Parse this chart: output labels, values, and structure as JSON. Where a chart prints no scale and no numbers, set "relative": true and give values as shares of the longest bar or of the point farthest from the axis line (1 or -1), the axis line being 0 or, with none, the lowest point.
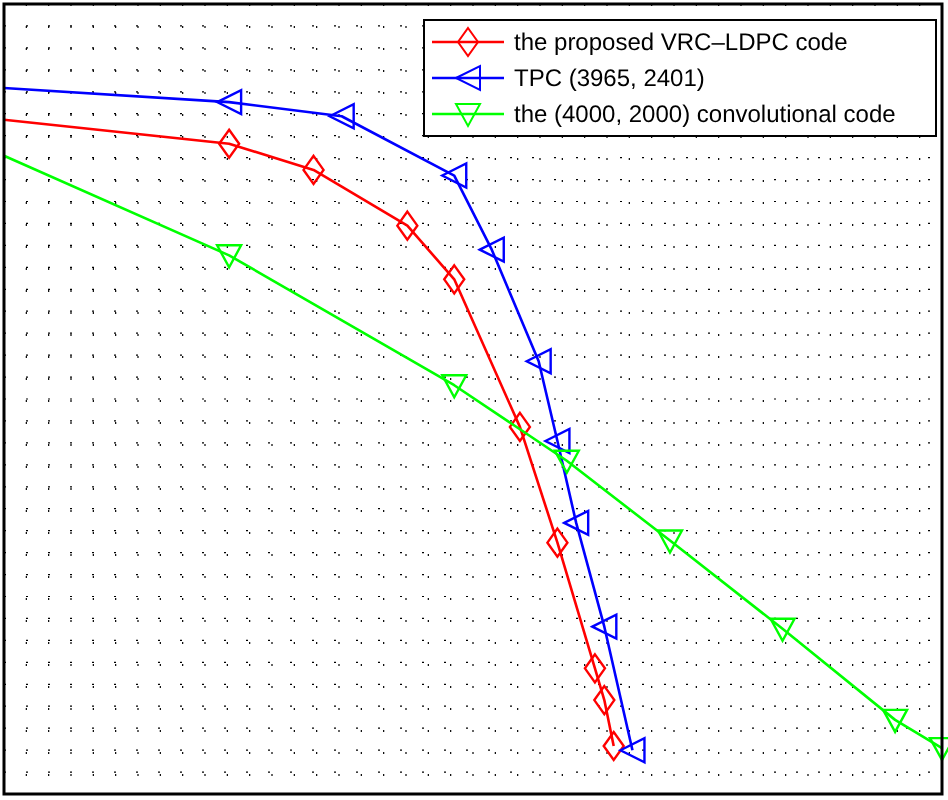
{
  "chart_data": {
    "type": "line",
    "relative": true,
    "grid": true,
    "legend": "top right",
    "line_style": "solid",
    "categories": [
      null,
      null,
      null,
      null,
      null,
      null,
      null,
      null,
      null,
      null,
      null,
      null,
      null,
      null,
      null,
      null,
      null,
      null,
      null,
      null,
      null,
      null,
      null,
      null,
      null,
      null,
      null,
      null,
      null,
      null,
      null,
      null,
      null,
      null,
      null,
      null,
      null,
      null,
      null,
      null,
      null,
      null,
      null,
      null,
      null,
      null,
      null,
      null,
      null,
      null,
      null,
      null,
      null,
      null,
      null,
      null,
      null,
      null,
      null,
      null,
      null,
      null,
      null,
      null,
      null,
      null,
      null,
      null,
      null,
      null,
      null,
      null,
      null,
      null,
      null,
      null,
      null,
      null,
      null,
      null,
      null,
      null,
      null,
      null,
      null,
      null,
      null,
      null,
      null,
      null,
      null,
      null,
      null,
      null,
      null,
      null,
      null,
      null,
      null,
      null,
      null
    ],
    "series": [
      {
        "name": "the proposed VRC–LDPC code",
        "color": "#ff0000",
        "marker": "diamond",
        "values": [
          0.955,
          null,
          null,
          null,
          null,
          null,
          null,
          null,
          null,
          null,
          null,
          null,
          null,
          null,
          null,
          null,
          null,
          null,
          null,
          null,
          null,
          null,
          null,
          null,
          0.921,
          null,
          null,
          null,
          null,
          null,
          null,
          null,
          null,
          0.884,
          null,
          null,
          null,
          null,
          null,
          null,
          null,
          null,
          null,
          0.805,
          null,
          null,
          null,
          null,
          0.729,
          null,
          null,
          null,
          null,
          null,
          null,
          0.52,
          null,
          null,
          null,
          0.356,
          null,
          null,
          null,
          0.178,
          0.133,
          0.068,
          null,
          null,
          null,
          null,
          null,
          null,
          null,
          null,
          null,
          null,
          null,
          null,
          null,
          null,
          null,
          null,
          null,
          null,
          null,
          null,
          null,
          null,
          null,
          null,
          null,
          null,
          null,
          null,
          null,
          null,
          null,
          null,
          null,
          null,
          null
        ]
      },
      {
        "name": "TPC (3965, 2401)",
        "color": "#0000ff",
        "marker": "triangle",
        "values": [
          1,
          null,
          null,
          null,
          null,
          null,
          null,
          null,
          null,
          null,
          null,
          null,
          null,
          null,
          null,
          null,
          null,
          null,
          null,
          null,
          null,
          null,
          null,
          null,
          0.98,
          null,
          null,
          null,
          null,
          null,
          null,
          null,
          null,
          null,
          null,
          null,
          0.96,
          null,
          null,
          null,
          null,
          null,
          null,
          null,
          null,
          null,
          null,
          null,
          0.876,
          null,
          null,
          null,
          0.771,
          null,
          null,
          null,
          null,
          0.613,
          null,
          0.5,
          null,
          0.384,
          null,
          null,
          0.237,
          null,
          null,
          0.062,
          null,
          null,
          null,
          null,
          null,
          null,
          null,
          null,
          null,
          null,
          null,
          null,
          null,
          null,
          null,
          null,
          null,
          null,
          null,
          null,
          null,
          null,
          null,
          null,
          null,
          null,
          null,
          null,
          null,
          null,
          null,
          null,
          null
        ]
      },
      {
        "name": "the (4000, 2000) convolutional code",
        "color": "#00ff00",
        "marker": "triangle",
        "values": [
          0.904,
          null,
          null,
          null,
          null,
          null,
          null,
          null,
          null,
          null,
          null,
          null,
          null,
          null,
          null,
          null,
          null,
          null,
          null,
          null,
          null,
          null,
          null,
          null,
          0.763,
          null,
          null,
          null,
          null,
          null,
          null,
          null,
          null,
          null,
          null,
          null,
          null,
          null,
          null,
          null,
          null,
          null,
          null,
          null,
          null,
          null,
          null,
          null,
          0.579,
          null,
          null,
          null,
          null,
          null,
          null,
          null,
          null,
          null,
          null,
          null,
          0.472,
          null,
          null,
          null,
          null,
          null,
          null,
          null,
          null,
          null,
          null,
          0.359,
          null,
          null,
          null,
          null,
          null,
          null,
          null,
          null,
          null,
          null,
          null,
          0.234,
          null,
          null,
          null,
          null,
          null,
          null,
          null,
          null,
          null,
          null,
          null,
          0.105,
          null,
          null,
          null,
          null,
          0.065
        ]
      }
    ]
  }
}
